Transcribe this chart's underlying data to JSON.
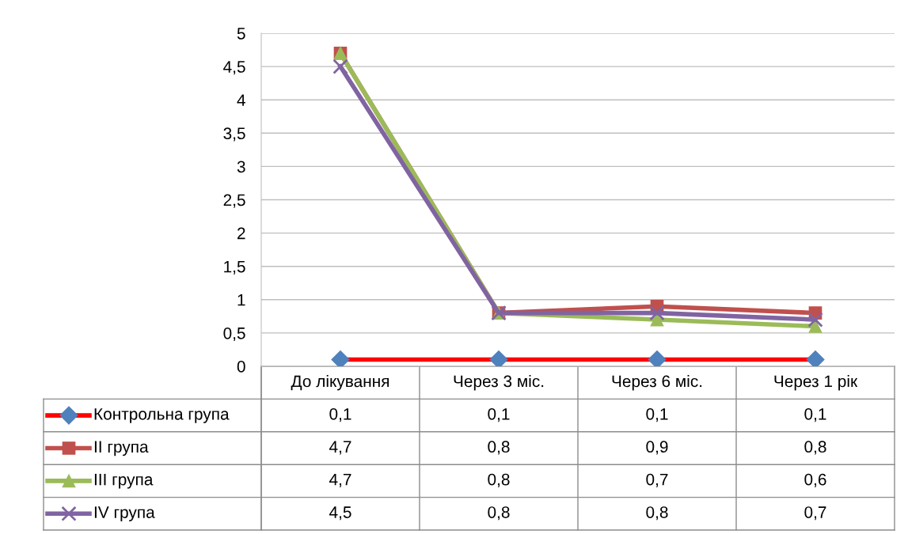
{
  "chart_data": {
    "type": "line",
    "categories": [
      "До лікування",
      "Через 3 міс.",
      "Через 6 міс.",
      "Через 1 рік"
    ],
    "series": [
      {
        "name": "Контрольна група",
        "color": "#ff0000",
        "marker": "diamond",
        "colors": [
          "#4f81bd",
          "#4f81bd",
          "#4f81bd",
          "#4f81bd"
        ],
        "values": [
          0.1,
          0.1,
          0.1,
          0.1
        ],
        "value_labels": [
          "0,1",
          "0,1",
          "0,1",
          "0,1"
        ]
      },
      {
        "name": "II група",
        "color": "#c0504d",
        "marker": "square",
        "values": [
          4.7,
          0.8,
          0.9,
          0.8
        ],
        "value_labels": [
          "4,7",
          "0,8",
          "0,9",
          "0,8"
        ]
      },
      {
        "name": "III група",
        "color": "#9bbb59",
        "marker": "triangle",
        "values": [
          4.7,
          0.8,
          0.7,
          0.6
        ],
        "value_labels": [
          "4,7",
          "0,8",
          "0,7",
          "0,6"
        ]
      },
      {
        "name": "IV група",
        "color": "#8064a2",
        "marker": "cross",
        "values": [
          4.5,
          0.8,
          0.8,
          0.7
        ],
        "value_labels": [
          "4,5",
          "0,8",
          "0,8",
          "0,7"
        ]
      }
    ],
    "ylim": [
      0,
      5
    ],
    "yticks": [
      0,
      {
        "value": 0.5,
        "label": "0,5"
      },
      1,
      {
        "value": 1.5,
        "label": "1,5"
      },
      2,
      {
        "value": 2.5,
        "label": "2,5"
      },
      3,
      {
        "value": 3.5,
        "label": "3,5"
      },
      4,
      {
        "value": 4.5,
        "label": "4,5"
      },
      5
    ],
    "grid": "y",
    "legend": "bottom"
  }
}
